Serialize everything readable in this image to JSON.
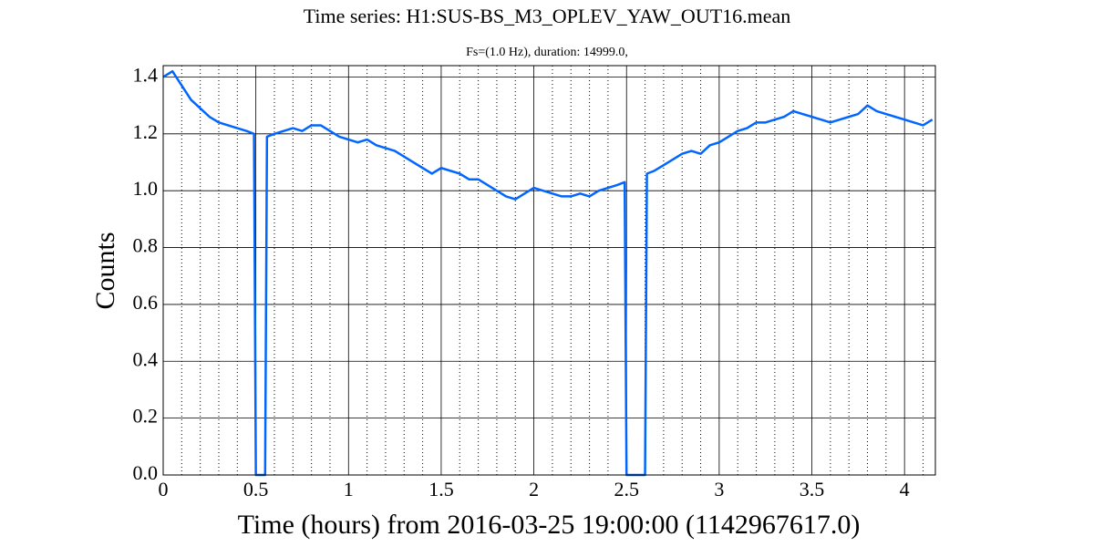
{
  "chart_data": {
    "type": "line",
    "title": "Time series: H1:SUS-BS_M3_OPLEV_YAW_OUT16.mean",
    "subtitle": "Fs=(1.0 Hz), duration: 14999.0,",
    "x_label": "Time (hours) from 2016-03-25 19:00:00 (1142967617.0)",
    "y_label": "Counts",
    "xlim": [
      0,
      4.1664
    ],
    "ylim": [
      0,
      1.44
    ],
    "xticks": [
      0,
      0.5,
      1,
      1.5,
      2,
      2.5,
      3,
      3.5,
      4
    ],
    "xminorticks": [
      0.1,
      0.2,
      0.3,
      0.4,
      0.6,
      0.7,
      0.8,
      0.9,
      1.1,
      1.2,
      1.3,
      1.4,
      1.6,
      1.7,
      1.8,
      1.9,
      2.1,
      2.2,
      2.3,
      2.4,
      2.6,
      2.7,
      2.8,
      2.9,
      3.1,
      3.2,
      3.3,
      3.4,
      3.6,
      3.7,
      3.8,
      3.9,
      4.1
    ],
    "yticks": [
      {
        "value": 0,
        "label": "0.0"
      },
      0.2,
      0.4,
      0.6,
      0.8,
      {
        "value": 1,
        "label": "1.0"
      },
      1.2,
      1.4
    ],
    "grid": true,
    "series": [
      {
        "color": "#0066ff",
        "x": [
          0,
          0.05,
          0.1,
          0.15,
          0.2,
          0.25,
          0.3,
          0.35,
          0.4,
          0.45,
          0.49,
          0.5,
          0.55,
          0.56,
          0.6,
          0.65,
          0.7,
          0.75,
          0.8,
          0.85,
          0.9,
          0.95,
          1.0,
          1.05,
          1.1,
          1.15,
          1.2,
          1.25,
          1.3,
          1.35,
          1.4,
          1.45,
          1.5,
          1.55,
          1.6,
          1.65,
          1.7,
          1.75,
          1.8,
          1.85,
          1.9,
          1.95,
          2.0,
          2.05,
          2.1,
          2.15,
          2.2,
          2.25,
          2.3,
          2.35,
          2.4,
          2.45,
          2.49,
          2.5,
          2.6,
          2.61,
          2.65,
          2.7,
          2.75,
          2.8,
          2.85,
          2.9,
          2.95,
          3.0,
          3.05,
          3.1,
          3.15,
          3.2,
          3.25,
          3.3,
          3.35,
          3.4,
          3.45,
          3.5,
          3.55,
          3.6,
          3.65,
          3.7,
          3.75,
          3.8,
          3.85,
          3.9,
          3.95,
          4.0,
          4.05,
          4.1,
          4.15
        ],
        "values": [
          1.4,
          1.42,
          1.37,
          1.32,
          1.29,
          1.26,
          1.24,
          1.23,
          1.22,
          1.21,
          1.2,
          0,
          0,
          1.19,
          1.2,
          1.21,
          1.22,
          1.21,
          1.23,
          1.23,
          1.21,
          1.19,
          1.18,
          1.17,
          1.18,
          1.16,
          1.15,
          1.14,
          1.12,
          1.1,
          1.08,
          1.06,
          1.08,
          1.07,
          1.06,
          1.04,
          1.04,
          1.02,
          1.0,
          0.98,
          0.97,
          0.99,
          1.01,
          1.0,
          0.99,
          0.98,
          0.98,
          0.99,
          0.98,
          1.0,
          1.01,
          1.02,
          1.03,
          0,
          0,
          1.06,
          1.07,
          1.09,
          1.11,
          1.13,
          1.14,
          1.13,
          1.16,
          1.17,
          1.19,
          1.21,
          1.22,
          1.24,
          1.24,
          1.25,
          1.26,
          1.28,
          1.27,
          1.26,
          1.25,
          1.24,
          1.25,
          1.26,
          1.27,
          1.3,
          1.28,
          1.27,
          1.26,
          1.25,
          1.24,
          1.23,
          1.25
        ]
      }
    ]
  }
}
